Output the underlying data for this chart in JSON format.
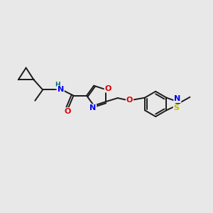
{
  "background_color": "#e8e8e8",
  "bond_color": "#1a1a1a",
  "atom_colors": {
    "O": "#dd0000",
    "N": "#0000ee",
    "S": "#bbbb00",
    "H": "#007070",
    "C": "#1a1a1a"
  },
  "figsize": [
    3.0,
    3.0
  ],
  "dpi": 100
}
